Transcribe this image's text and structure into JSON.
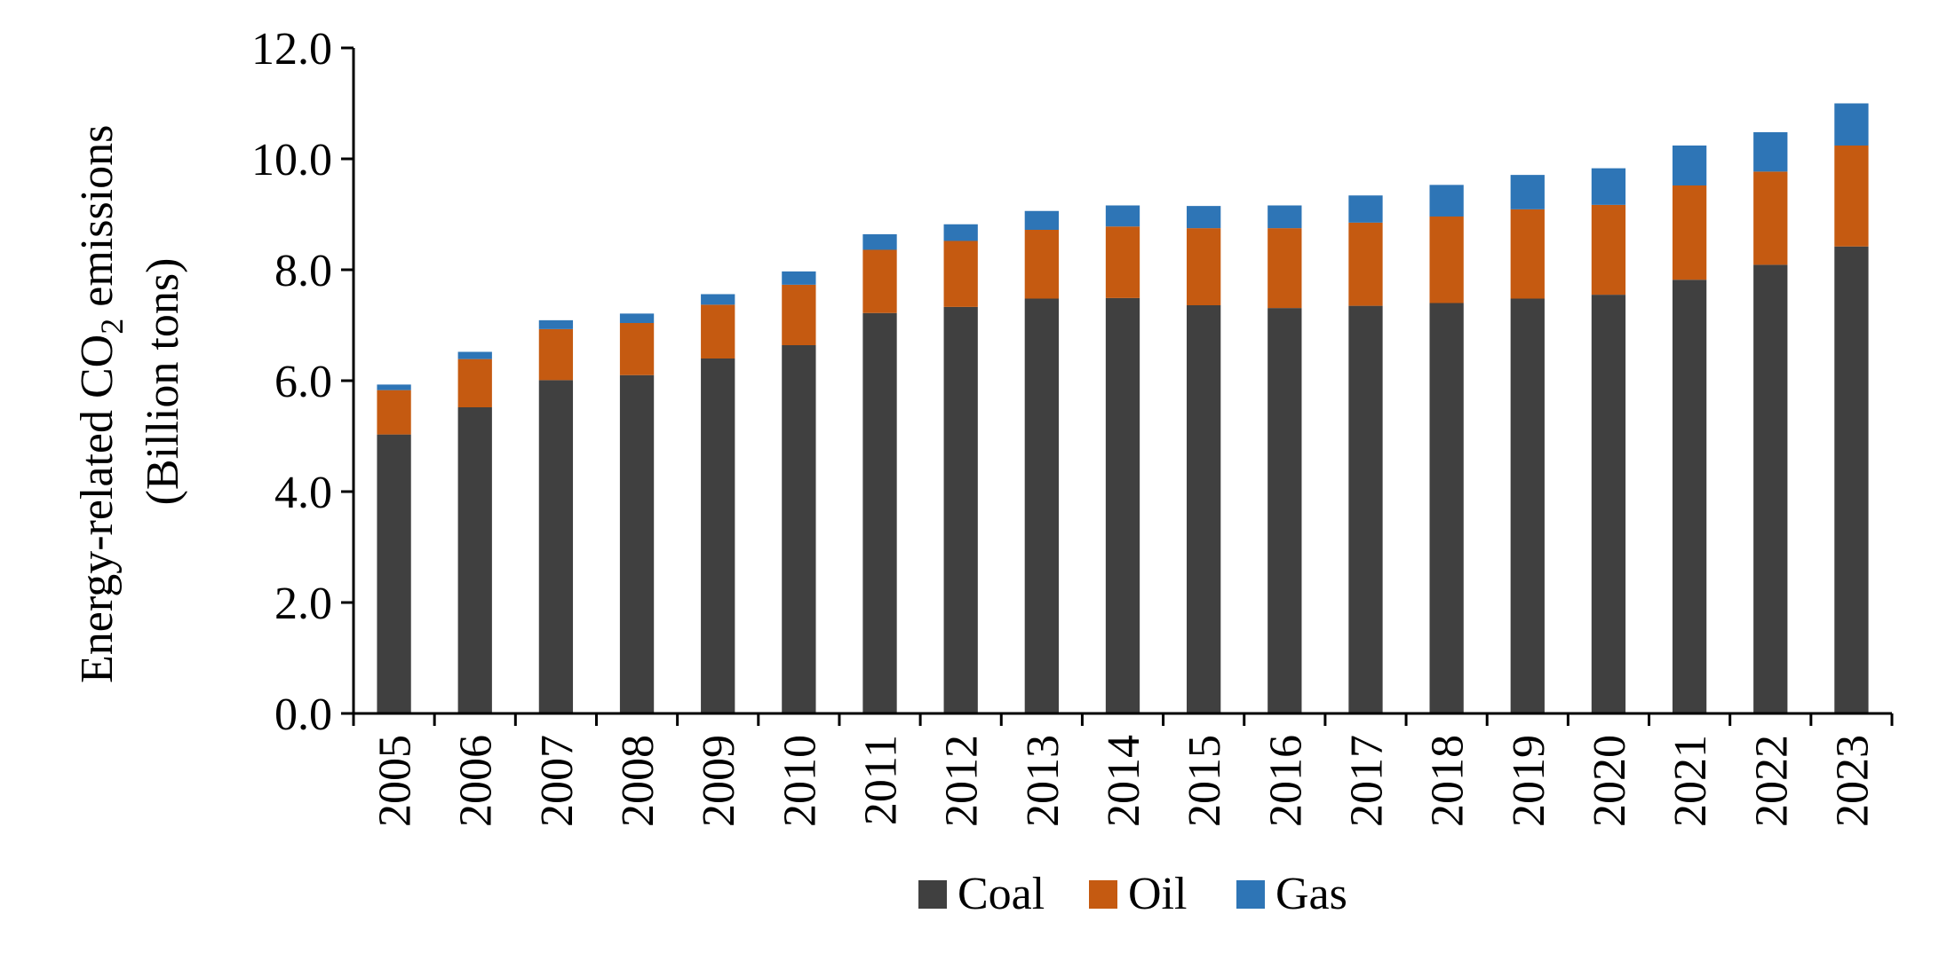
{
  "chart_data": {
    "type": "stacked-bar",
    "categories": [
      "2005",
      "2006",
      "2007",
      "2008",
      "2009",
      "2010",
      "2011",
      "2012",
      "2013",
      "2014",
      "2015",
      "2016",
      "2017",
      "2018",
      "2019",
      "2020",
      "2021",
      "2022",
      "2023"
    ],
    "series": [
      {
        "name": "Coal",
        "color": "#404040",
        "values": [
          5.03,
          5.52,
          6.01,
          6.1,
          6.4,
          6.64,
          7.22,
          7.33,
          7.48,
          7.49,
          7.36,
          7.31,
          7.35,
          7.4,
          7.48,
          7.55,
          7.82,
          8.09,
          8.42
        ]
      },
      {
        "name": "Oil",
        "color": "#C55A11",
        "values": [
          0.8,
          0.87,
          0.92,
          0.94,
          0.97,
          1.09,
          1.14,
          1.19,
          1.24,
          1.29,
          1.39,
          1.44,
          1.5,
          1.56,
          1.61,
          1.62,
          1.7,
          1.68,
          1.82
        ]
      },
      {
        "name": "Gas",
        "color": "#2E75B6",
        "values": [
          0.1,
          0.13,
          0.16,
          0.17,
          0.19,
          0.24,
          0.28,
          0.3,
          0.34,
          0.38,
          0.4,
          0.41,
          0.49,
          0.57,
          0.62,
          0.66,
          0.72,
          0.71,
          0.76
        ]
      }
    ],
    "title": "",
    "xlabel": "",
    "ylabel": {
      "line1": "Energy-related CO",
      "subscript": "2",
      "line1_suffix": " emissions",
      "line2": "(Billion tons)"
    },
    "ylim": [
      0,
      12
    ],
    "yticks": [
      "0.0",
      "2.0",
      "4.0",
      "6.0",
      "8.0",
      "10.0",
      "12.0"
    ],
    "legend": [
      "Coal",
      "Oil",
      "Gas"
    ],
    "legend_position": "bottom-center",
    "grid": false
  }
}
